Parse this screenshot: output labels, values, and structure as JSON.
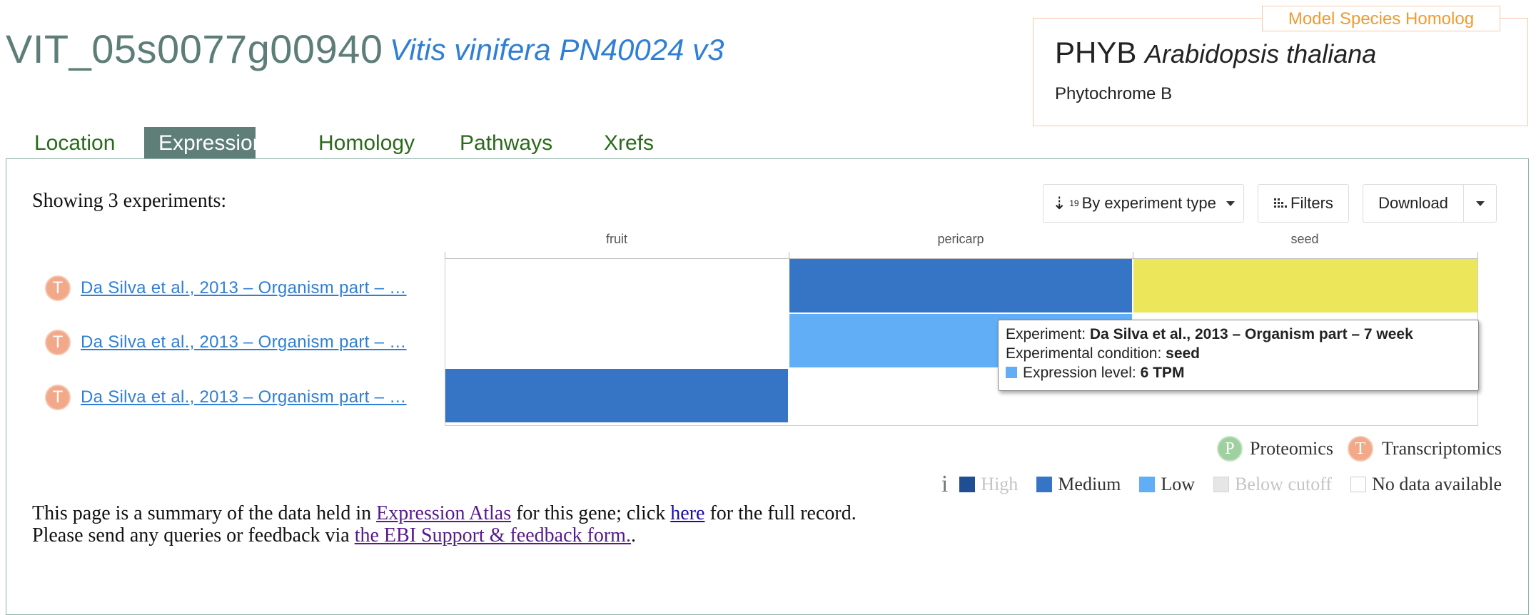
{
  "header": {
    "gene_id": "VIT_05s0077g00940",
    "species": "Vitis vinifera PN40024 v3"
  },
  "homolog": {
    "tag": "Model Species Homolog",
    "symbol": "PHYB",
    "species": "Arabidopsis thaliana",
    "description": "Phytochrome B"
  },
  "tabs": [
    "Location",
    "Expression",
    "Homology",
    "Pathways",
    "Xrefs"
  ],
  "active_tab": "Expression",
  "toolbar": {
    "showing": "Showing 3 experiments:",
    "sort_label": "By experiment type",
    "filters_label": "Filters",
    "download_label": "Download"
  },
  "heatmap": {
    "columns": [
      "fruit",
      "pericarp",
      "seed"
    ],
    "rows": [
      {
        "type_badge": "T",
        "label": "Da Silva et al., 2013 – Organism part – …",
        "cells": [
          "none",
          "medium",
          "selected"
        ]
      },
      {
        "type_badge": "T",
        "label": "Da Silva et al., 2013 – Organism part – …",
        "cells": [
          "none",
          "low",
          "none"
        ]
      },
      {
        "type_badge": "T",
        "label": "Da Silva et al., 2013 – Organism part – …",
        "cells": [
          "medium",
          "none",
          "none"
        ]
      }
    ],
    "colors": {
      "high": "#1f4e93",
      "medium": "#3674c6",
      "low": "#61aef6",
      "selected": "#ece65b",
      "below_cutoff": "#e6e6e6"
    }
  },
  "tooltip": {
    "experiment_label": "Experiment:",
    "experiment_value": "Da Silva et al., 2013 – Organism part – 7 week",
    "condition_label": "Experimental condition:",
    "condition_value": "seed",
    "level_label": "Expression level:",
    "level_value": "6 TPM"
  },
  "legend": {
    "proteomics_badge": "P",
    "proteomics": "Proteomics",
    "transcriptomics_badge": "T",
    "transcriptomics": "Transcriptomics",
    "info": "i",
    "high": "High",
    "medium": "Medium",
    "low": "Low",
    "below_cutoff": "Below cutoff",
    "no_data": "No data available"
  },
  "footer": {
    "line1_pre": "This page is a summary of the data held in ",
    "atlas_link": "Expression Atlas",
    "line1_mid": " for this gene; click ",
    "here_link": "here",
    "line1_post": " for the full record.",
    "line2_pre": "Please send any queries or feedback via ",
    "feedback_link": "the EBI Support & feedback form.",
    "line2_post": "."
  }
}
